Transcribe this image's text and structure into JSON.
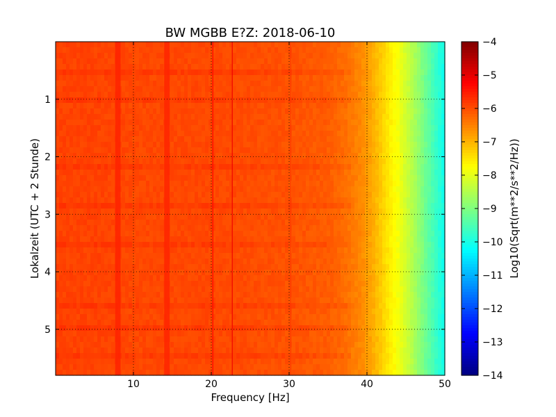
{
  "chart_data": {
    "type": "heatmap",
    "title": "BW MGBB E?Z: 2018-06-10",
    "xlabel": "Frequency [Hz]",
    "ylabel": "Lokalzeit (UTC + 2 Stunde)",
    "xlim": [
      0,
      50
    ],
    "ylim": [
      0,
      5.8
    ],
    "y_inverted": true,
    "grid": true,
    "x_ticks": [
      10,
      20,
      30,
      40,
      50
    ],
    "y_ticks": [
      1,
      2,
      3,
      4,
      5
    ],
    "colormap": "jet",
    "colorbar": {
      "label": "Log10(Sqrt(m**2/s**2/Hz))",
      "range": [
        -14,
        -4
      ],
      "ticks": [
        -4,
        -5,
        -6,
        -7,
        -8,
        -9,
        -10,
        -11,
        -12,
        -13,
        -14
      ]
    },
    "spectrum_profile": {
      "frequency_hz": [
        0,
        5,
        10,
        15,
        20,
        25,
        30,
        35,
        37,
        39,
        40,
        41,
        42,
        43,
        44,
        45,
        46,
        47,
        48,
        49,
        50
      ],
      "log10_amplitude": [
        -5.9,
        -5.9,
        -5.95,
        -5.95,
        -5.95,
        -6.0,
        -6.05,
        -6.15,
        -6.3,
        -6.55,
        -6.75,
        -7.0,
        -7.3,
        -7.6,
        -7.85,
        -8.2,
        -8.55,
        -8.95,
        -9.35,
        -9.75,
        -10.1
      ]
    },
    "vertical_features_hz": [
      {
        "frequency": 8.0,
        "width": 0.7,
        "delta": 0.35
      },
      {
        "frequency": 14.3,
        "width": 0.7,
        "delta": 0.35
      },
      {
        "frequency": 20.2,
        "width": 0.15,
        "delta": 0.6
      },
      {
        "frequency": 22.7,
        "width": 0.12,
        "delta": 0.9
      },
      {
        "frequency": 30.2,
        "width": 0.1,
        "delta": 0.3
      }
    ],
    "horizontal_bands_hours": [
      0.55,
      1.05,
      2.2,
      2.85,
      3.5,
      4.6,
      5.0,
      5.45
    ]
  }
}
